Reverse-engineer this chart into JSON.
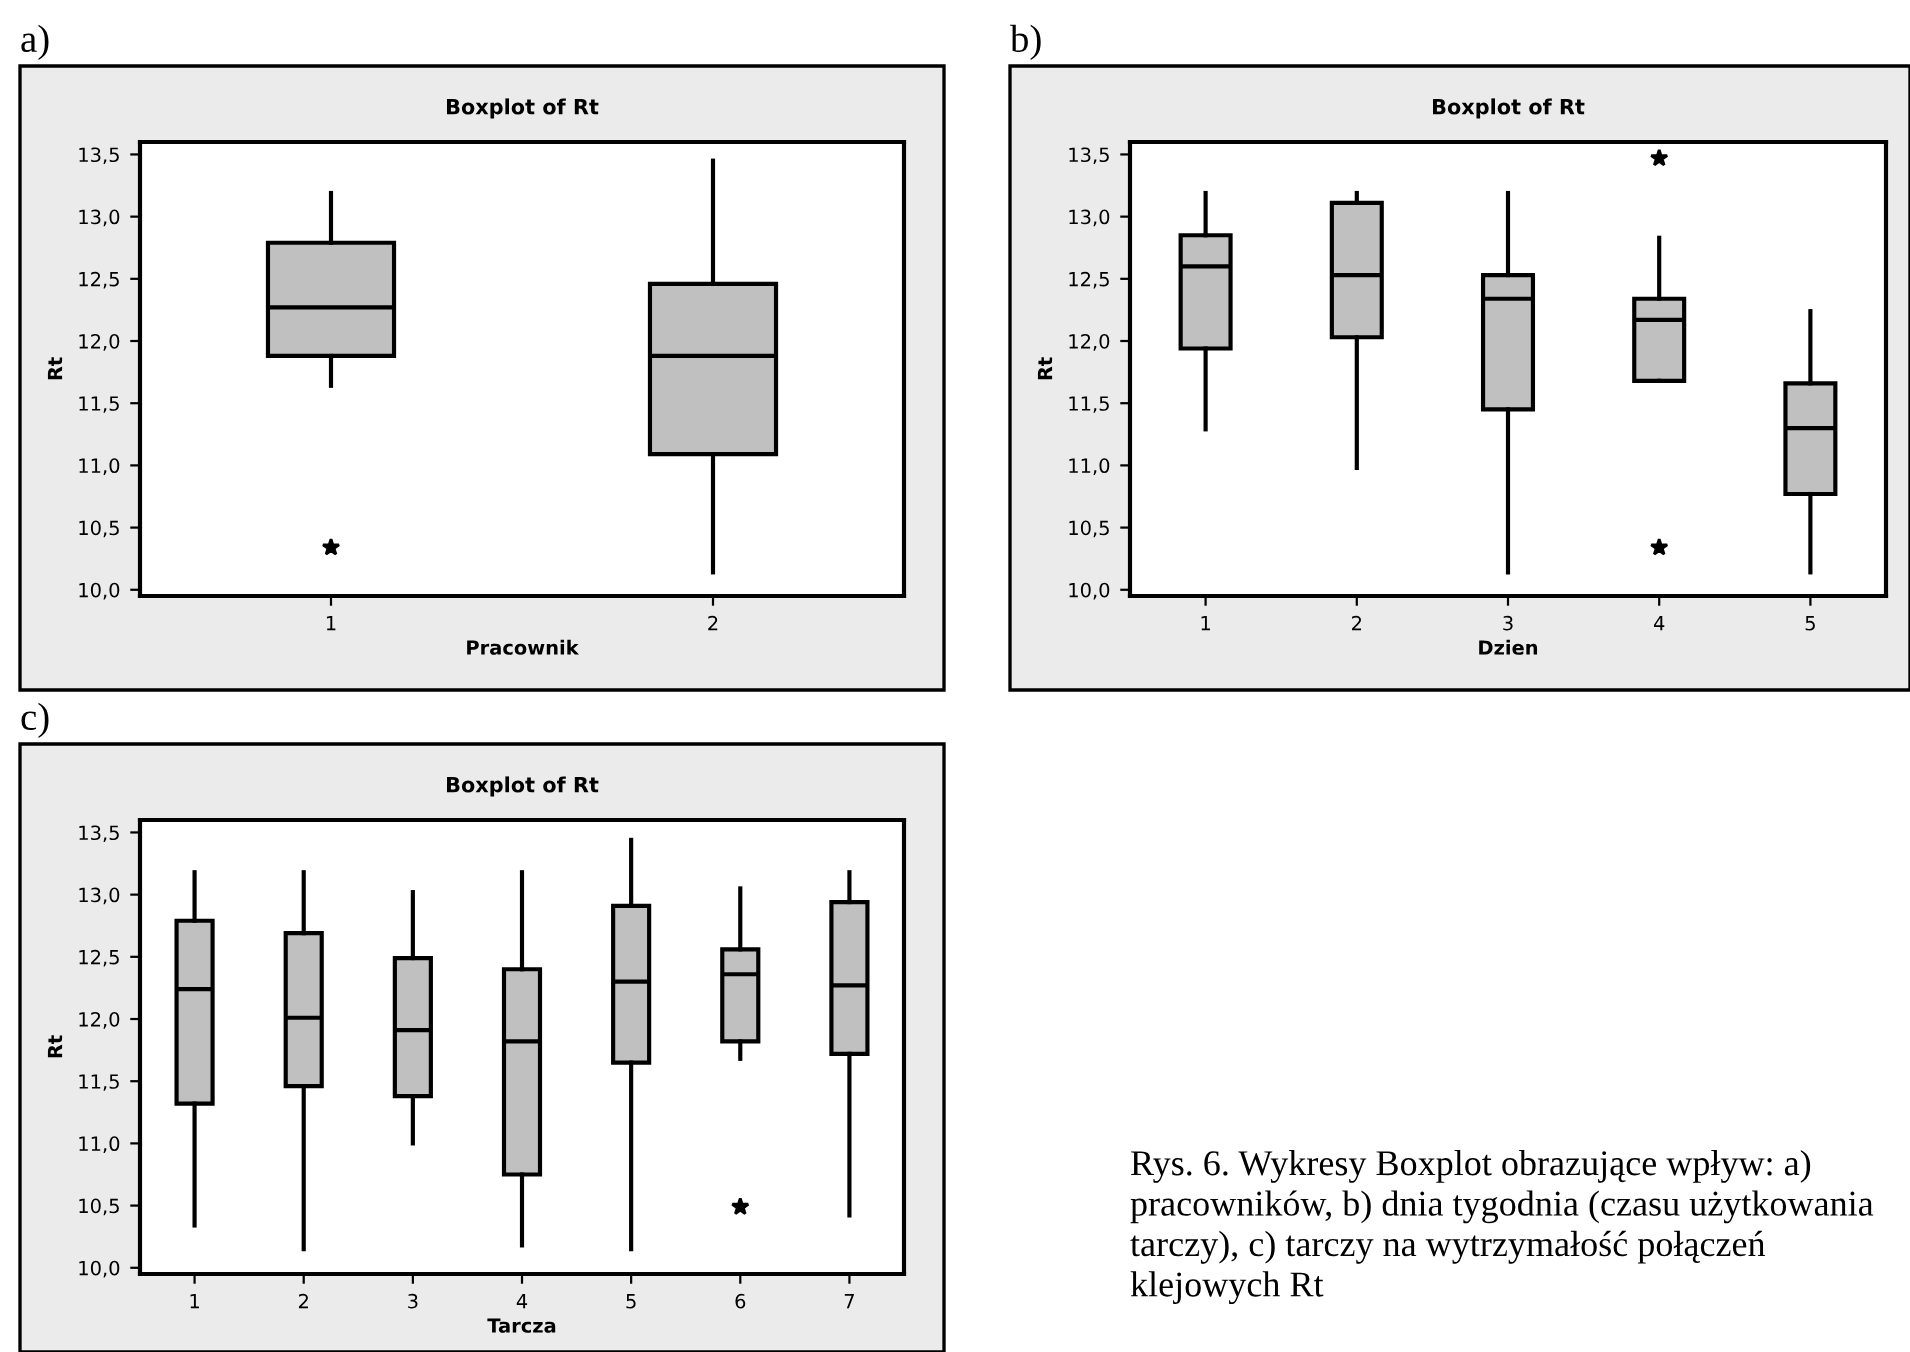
{
  "chart_data": [
    {
      "type": "box",
      "title": "Boxplot of Rt",
      "xlabel": "Pracownik",
      "ylabel": "Rt",
      "annotations": [
        "a)"
      ],
      "categories": [
        "1",
        "2"
      ],
      "color": "#c0c0c0",
      "ylim": [
        9.95,
        13.6
      ],
      "yticks": [
        {
          "value": 10.0,
          "label": "10,0"
        },
        {
          "value": 10.5,
          "label": "10,5"
        },
        {
          "value": 11.0,
          "label": "11,0"
        },
        {
          "value": 11.5,
          "label": "11,5"
        },
        {
          "value": 12.0,
          "label": "12,0"
        },
        {
          "value": 12.5,
          "label": "12,5"
        },
        {
          "value": 13.0,
          "label": "13,0"
        },
        {
          "value": 13.5,
          "label": "13,5"
        }
      ],
      "grid": false,
      "boxes": [
        {
          "low": 11.64,
          "q1": 11.88,
          "median": 12.27,
          "q3": 12.79,
          "high": 13.19,
          "outliers": [
            10.34
          ]
        },
        {
          "low": 10.14,
          "q1": 11.09,
          "median": 11.88,
          "q3": 12.46,
          "high": 13.45
        }
      ]
    },
    {
      "type": "box",
      "title": "Boxplot of Rt",
      "xlabel": "Dzien",
      "ylabel": "Rt",
      "annotations": [
        "b)"
      ],
      "categories": [
        "1",
        "2",
        "3",
        "4",
        "5"
      ],
      "color": "#c0c0c0",
      "ylim": [
        9.95,
        13.6
      ],
      "yticks": [
        {
          "value": 10.0,
          "label": "10,0"
        },
        {
          "value": 10.5,
          "label": "10,5"
        },
        {
          "value": 11.0,
          "label": "11,0"
        },
        {
          "value": 11.5,
          "label": "11,5"
        },
        {
          "value": 12.0,
          "label": "12,0"
        },
        {
          "value": 12.5,
          "label": "12,5"
        },
        {
          "value": 13.0,
          "label": "13,0"
        },
        {
          "value": 13.5,
          "label": "13,5"
        }
      ],
      "grid": false,
      "boxes": [
        {
          "low": 11.29,
          "q1": 11.94,
          "median": 12.6,
          "q3": 12.85,
          "high": 13.19
        },
        {
          "low": 10.98,
          "q1": 12.03,
          "median": 12.53,
          "q3": 13.11,
          "high": 13.19
        },
        {
          "low": 10.14,
          "q1": 11.45,
          "median": 12.34,
          "q3": 12.53,
          "high": 13.19
        },
        {
          "low": 11.68,
          "q1": 11.68,
          "median": 12.17,
          "q3": 12.34,
          "high": 12.83,
          "outliers": [
            13.47,
            10.34
          ]
        },
        {
          "low": 10.14,
          "q1": 10.77,
          "median": 11.3,
          "q3": 11.66,
          "high": 12.24
        }
      ]
    },
    {
      "type": "box",
      "title": "Boxplot of Rt",
      "xlabel": "Tarcza",
      "ylabel": "Rt",
      "annotations": [
        "c)"
      ],
      "categories": [
        "1",
        "2",
        "3",
        "4",
        "5",
        "6",
        "7"
      ],
      "color": "#c0c0c0",
      "ylim": [
        9.95,
        13.6
      ],
      "yticks": [
        {
          "value": 10.0,
          "label": "10,0"
        },
        {
          "value": 10.5,
          "label": "10,5"
        },
        {
          "value": 11.0,
          "label": "11,0"
        },
        {
          "value": 11.5,
          "label": "11,5"
        },
        {
          "value": 12.0,
          "label": "12,0"
        },
        {
          "value": 12.5,
          "label": "12,5"
        },
        {
          "value": 13.0,
          "label": "13,0"
        },
        {
          "value": 13.5,
          "label": "13,5"
        }
      ],
      "grid": false,
      "boxes": [
        {
          "low": 10.34,
          "q1": 11.32,
          "median": 12.24,
          "q3": 12.79,
          "high": 13.18
        },
        {
          "low": 10.15,
          "q1": 11.46,
          "median": 12.01,
          "q3": 12.69,
          "high": 13.18
        },
        {
          "low": 11.0,
          "q1": 11.38,
          "median": 11.91,
          "q3": 12.49,
          "high": 13.02
        },
        {
          "low": 10.18,
          "q1": 10.75,
          "median": 11.82,
          "q3": 12.4,
          "high": 13.18
        },
        {
          "low": 10.15,
          "q1": 11.65,
          "median": 12.3,
          "q3": 12.91,
          "high": 13.44
        },
        {
          "low": 11.68,
          "q1": 11.82,
          "median": 12.36,
          "q3": 12.56,
          "high": 13.05,
          "outliers": [
            10.49
          ]
        },
        {
          "low": 10.42,
          "q1": 11.72,
          "median": 12.27,
          "q3": 12.94,
          "high": 13.18
        }
      ]
    },
    {
      "type": "other",
      "annotations": [
        "Rys. 6. Wykresy Boxplot obrazujące wpływ: a) pracowników, b) dnia tygodnia (czasu użytkowania tarczy), c) tarczy na wytrzymałość połączeń klejowych Rt"
      ]
    }
  ]
}
